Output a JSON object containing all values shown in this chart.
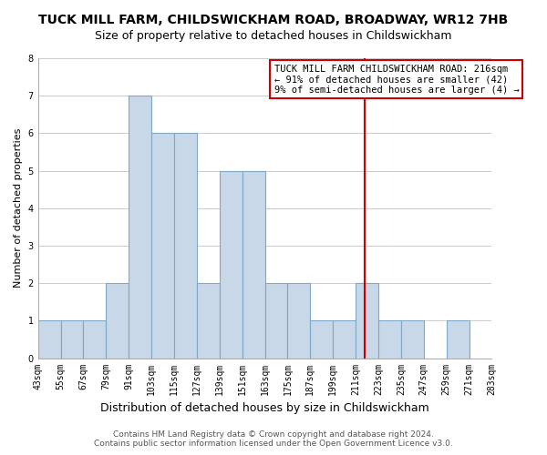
{
  "title": "TUCK MILL FARM, CHILDSWICKHAM ROAD, BROADWAY, WR12 7HB",
  "subtitle": "Size of property relative to detached houses in Childswickham",
  "xlabel": "Distribution of detached houses by size in Childswickham",
  "ylabel": "Number of detached properties",
  "bin_edges": [
    43,
    55,
    67,
    79,
    91,
    103,
    115,
    127,
    139,
    151,
    163,
    175,
    187,
    199,
    211,
    223,
    235,
    247,
    259,
    271,
    283
  ],
  "bin_labels": [
    "43sqm",
    "55sqm",
    "67sqm",
    "79sqm",
    "91sqm",
    "103sqm",
    "115sqm",
    "127sqm",
    "139sqm",
    "151sqm",
    "163sqm",
    "175sqm",
    "187sqm",
    "199sqm",
    "211sqm",
    "223sqm",
    "235sqm",
    "247sqm",
    "259sqm",
    "271sqm",
    "283sqm"
  ],
  "counts": [
    1,
    1,
    1,
    2,
    7,
    6,
    6,
    2,
    5,
    5,
    2,
    2,
    1,
    1,
    2,
    1,
    1,
    0,
    1,
    0
  ],
  "bar_color": "#c8d8e8",
  "bar_edge_color": "#7fa8c8",
  "vline_x": 216,
  "vline_color": "#cc0000",
  "ylim": [
    0,
    8
  ],
  "yticks": [
    0,
    1,
    2,
    3,
    4,
    5,
    6,
    7,
    8
  ],
  "annotation_title": "TUCK MILL FARM CHILDSWICKHAM ROAD: 216sqm",
  "annotation_line1": "← 91% of detached houses are smaller (42)",
  "annotation_line2": "9% of semi-detached houses are larger (4) →",
  "annotation_box_color": "#ffffff",
  "annotation_box_edge": "#cc0000",
  "footer1": "Contains HM Land Registry data © Crown copyright and database right 2024.",
  "footer2": "Contains public sector information licensed under the Open Government Licence v3.0.",
  "bg_color": "#ffffff",
  "grid_color": "#cccccc",
  "title_fontsize": 10,
  "subtitle_fontsize": 9,
  "xlabel_fontsize": 9,
  "ylabel_fontsize": 8,
  "tick_fontsize": 7,
  "footer_fontsize": 6.5,
  "ann_fontsize": 7.5
}
